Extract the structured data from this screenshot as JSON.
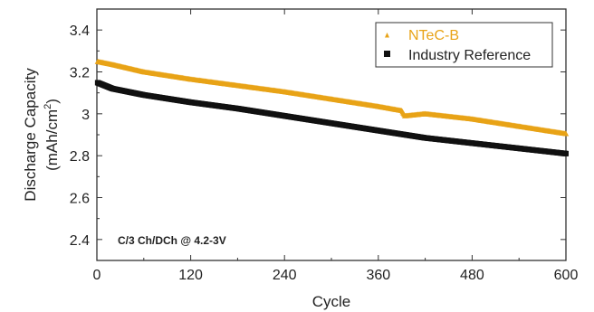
{
  "chart_data": {
    "type": "scatter",
    "xlabel": "Cycle",
    "ylabel_line1": "Discharge Capacity",
    "ylabel_line2_main": "(mAh/cm",
    "ylabel_line2_sup": "2",
    "ylabel_line2_end": ")",
    "xlim": [
      0,
      600
    ],
    "ylim": [
      2.3,
      3.5
    ],
    "xticks": [
      0,
      120,
      240,
      360,
      480,
      600
    ],
    "xtick_labels": [
      "0",
      "120",
      "240",
      "360",
      "480",
      "600"
    ],
    "yticks": [
      2.4,
      2.6,
      2.8,
      3.0,
      3.2,
      3.4
    ],
    "ytick_labels": [
      "2.4",
      "2.6",
      "2.8",
      "3",
      "3.2",
      "3.4"
    ],
    "grid": false,
    "legend_position": "top-right",
    "annotation": "C/3 Ch/DCh @ 4.2-3V",
    "series": [
      {
        "name": "NTeC-B",
        "color": "#E8A317",
        "marker": "triangle",
        "x": [
          0,
          20,
          60,
          120,
          180,
          240,
          300,
          360,
          390,
          394,
          420,
          480,
          540,
          600
        ],
        "y": [
          3.25,
          3.235,
          3.2,
          3.165,
          3.135,
          3.105,
          3.07,
          3.035,
          3.015,
          2.99,
          3.0,
          2.975,
          2.94,
          2.905
        ]
      },
      {
        "name": "Industry Reference",
        "color": "#111111",
        "marker": "square",
        "x": [
          0,
          20,
          60,
          120,
          180,
          240,
          300,
          360,
          420,
          480,
          540,
          600
        ],
        "y": [
          3.15,
          3.12,
          3.09,
          3.055,
          3.025,
          2.99,
          2.955,
          2.92,
          2.885,
          2.86,
          2.835,
          2.81
        ]
      }
    ]
  }
}
